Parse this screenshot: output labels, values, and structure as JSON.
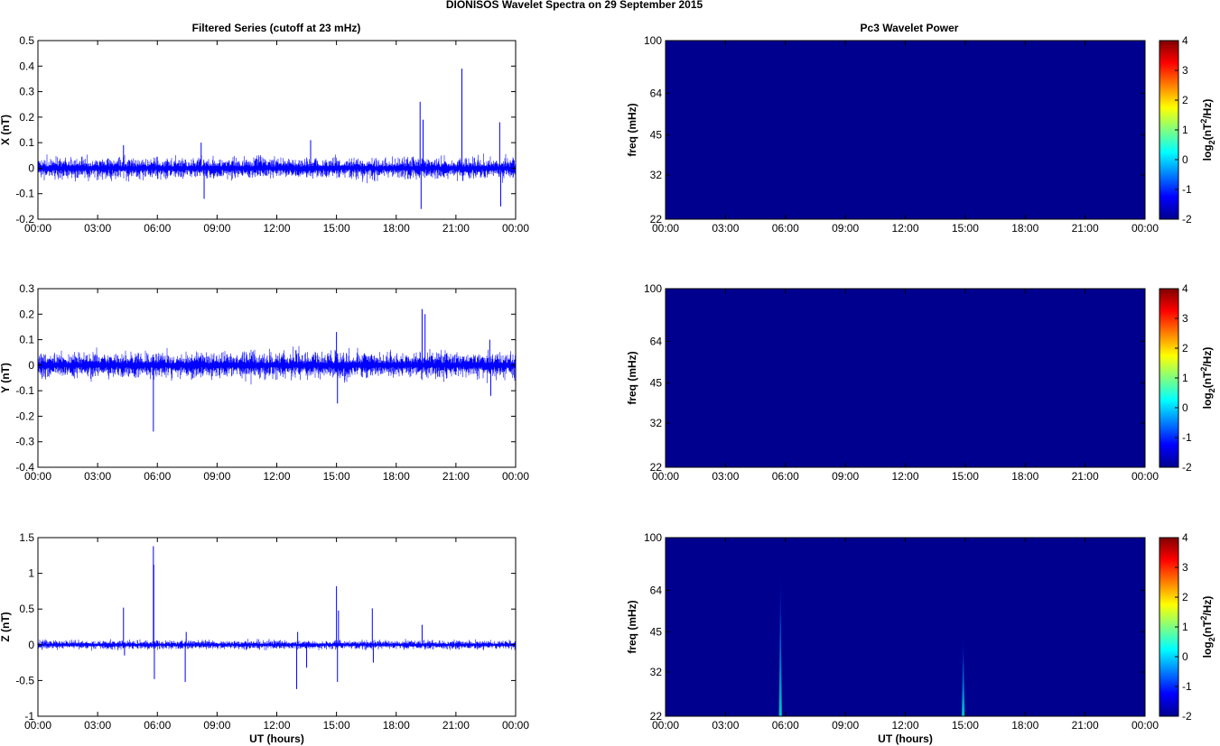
{
  "figure": {
    "title": "DIONISOS Wavelet Spectra on 29 September 2015",
    "left_title": "Filtered Series (cutoff at 23 mHz)",
    "right_title": "Pc3 Wavelet Power",
    "xlabel": "UT (hours)"
  },
  "colors": {
    "trace": "#0000ff",
    "background_power": "#00008f",
    "axis": "#000000"
  },
  "chart_data": [
    {
      "type": "line",
      "title": "Filtered Series (cutoff at 23 mHz)",
      "xlabel": "",
      "ylabel": "X (nT)",
      "xlim": [
        0,
        24
      ],
      "ylim": [
        -0.2,
        0.5
      ],
      "xticks": [
        "00:00",
        "03:00",
        "06:00",
        "09:00",
        "12:00",
        "15:00",
        "18:00",
        "21:00",
        "00:00"
      ],
      "yticks": [
        "-0.2",
        "-0.1",
        "0",
        "0.1",
        "0.2",
        "0.3",
        "0.4",
        "0.5"
      ],
      "noise_amplitude": 0.04,
      "spikes": [
        {
          "x": 4.3,
          "y": 0.09
        },
        {
          "x": 8.2,
          "y": 0.1
        },
        {
          "x": 8.35,
          "y": -0.12
        },
        {
          "x": 13.7,
          "y": 0.11
        },
        {
          "x": 19.2,
          "y": 0.26
        },
        {
          "x": 19.25,
          "y": -0.16
        },
        {
          "x": 19.35,
          "y": 0.19
        },
        {
          "x": 21.3,
          "y": 0.39
        },
        {
          "x": 21.35,
          "y": -0.05
        },
        {
          "x": 23.2,
          "y": 0.18
        },
        {
          "x": 23.25,
          "y": -0.15
        }
      ]
    },
    {
      "type": "line",
      "title": "",
      "xlabel": "",
      "ylabel": "Y (nT)",
      "xlim": [
        0,
        24
      ],
      "ylim": [
        -0.4,
        0.3
      ],
      "xticks": [
        "00:00",
        "03:00",
        "06:00",
        "09:00",
        "12:00",
        "15:00",
        "18:00",
        "21:00",
        "00:00"
      ],
      "yticks": [
        "-0.4",
        "-0.3",
        "-0.2",
        "-0.1",
        "0",
        "0.1",
        "0.2",
        "0.3"
      ],
      "noise_amplitude": 0.05,
      "spikes": [
        {
          "x": 5.8,
          "y": -0.26
        },
        {
          "x": 15.0,
          "y": 0.13
        },
        {
          "x": 15.05,
          "y": -0.15
        },
        {
          "x": 19.3,
          "y": 0.22
        },
        {
          "x": 19.45,
          "y": 0.2
        },
        {
          "x": 22.7,
          "y": 0.1
        },
        {
          "x": 22.75,
          "y": -0.12
        }
      ]
    },
    {
      "type": "line",
      "title": "",
      "xlabel": "UT (hours)",
      "ylabel": "Z (nT)",
      "xlim": [
        0,
        24
      ],
      "ylim": [
        -1,
        1.5
      ],
      "xticks": [
        "00:00",
        "03:00",
        "06:00",
        "09:00",
        "12:00",
        "15:00",
        "18:00",
        "21:00",
        "00:00"
      ],
      "yticks": [
        "-1",
        "-0.5",
        "0",
        "0.5",
        "1",
        "1.5"
      ],
      "noise_amplitude": 0.06,
      "spikes": [
        {
          "x": 4.3,
          "y": 0.52
        },
        {
          "x": 4.35,
          "y": -0.15
        },
        {
          "x": 5.8,
          "y": 1.38
        },
        {
          "x": 5.82,
          "y": 1.12
        },
        {
          "x": 5.85,
          "y": -0.48
        },
        {
          "x": 7.4,
          "y": -0.52
        },
        {
          "x": 7.45,
          "y": 0.18
        },
        {
          "x": 13.0,
          "y": -0.62
        },
        {
          "x": 13.05,
          "y": 0.18
        },
        {
          "x": 13.5,
          "y": -0.32
        },
        {
          "x": 15.0,
          "y": 0.82
        },
        {
          "x": 15.05,
          "y": -0.52
        },
        {
          "x": 15.1,
          "y": 0.48
        },
        {
          "x": 16.8,
          "y": 0.51
        },
        {
          "x": 16.85,
          "y": -0.25
        },
        {
          "x": 19.3,
          "y": 0.28
        }
      ]
    },
    {
      "type": "heatmap",
      "title": "Pc3 Wavelet Power",
      "xlabel": "",
      "ylabel": "freq (mHz)",
      "xlim": [
        0,
        24
      ],
      "ylim": [
        22,
        100
      ],
      "yscale": "log",
      "xticks": [
        "00:00",
        "03:00",
        "06:00",
        "09:00",
        "12:00",
        "15:00",
        "18:00",
        "21:00",
        "00:00"
      ],
      "yticks": [
        "22",
        "32",
        "45",
        "64",
        "100"
      ],
      "colorbar_label": "log2(nT2/Hz)",
      "colorbar_ticks": [
        "-2",
        "-1",
        "0",
        "1",
        "2",
        "3",
        "4"
      ],
      "clim": [
        -2,
        4
      ],
      "background_value": -2,
      "features": []
    },
    {
      "type": "heatmap",
      "title": "",
      "xlabel": "",
      "ylabel": "freq (mHz)",
      "xlim": [
        0,
        24
      ],
      "ylim": [
        22,
        100
      ],
      "yscale": "log",
      "xticks": [
        "00:00",
        "03:00",
        "06:00",
        "09:00",
        "12:00",
        "15:00",
        "18:00",
        "21:00",
        "00:00"
      ],
      "yticks": [
        "22",
        "32",
        "45",
        "64",
        "100"
      ],
      "colorbar_label": "log2(nT2/Hz)",
      "colorbar_ticks": [
        "-2",
        "-1",
        "0",
        "1",
        "2",
        "3",
        "4"
      ],
      "clim": [
        -2,
        4
      ],
      "background_value": -2,
      "features": []
    },
    {
      "type": "heatmap",
      "title": "",
      "xlabel": "UT (hours)",
      "ylabel": "freq (mHz)",
      "xlim": [
        0,
        24
      ],
      "ylim": [
        22,
        100
      ],
      "yscale": "log",
      "xticks": [
        "00:00",
        "03:00",
        "06:00",
        "09:00",
        "12:00",
        "15:00",
        "18:00",
        "21:00",
        "00:00"
      ],
      "yticks": [
        "22",
        "32",
        "45",
        "64",
        "100"
      ],
      "colorbar_label": "log2(nT2/Hz)",
      "colorbar_ticks": [
        "-2",
        "-1",
        "0",
        "1",
        "2",
        "3",
        "4"
      ],
      "clim": [
        -2,
        4
      ],
      "background_value": -2,
      "features": [
        {
          "x": 5.75,
          "freq_low": 22,
          "freq_high": 80,
          "value": 0.5
        },
        {
          "x": 14.9,
          "freq_low": 22,
          "freq_high": 45,
          "value": 0.5
        }
      ]
    }
  ]
}
